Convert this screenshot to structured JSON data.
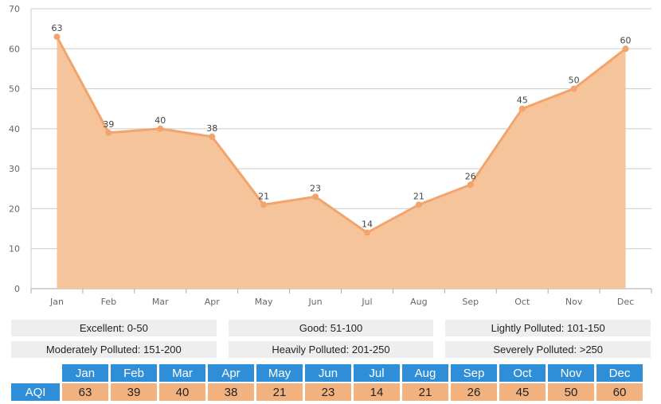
{
  "chart_data": {
    "type": "area",
    "categories": [
      "Jan",
      "Feb",
      "Mar",
      "Apr",
      "May",
      "Jun",
      "Jul",
      "Aug",
      "Sep",
      "Oct",
      "Nov",
      "Dec"
    ],
    "values": [
      63,
      39,
      40,
      38,
      21,
      23,
      14,
      21,
      26,
      45,
      50,
      60
    ],
    "ylim": [
      0,
      70
    ],
    "yticks": [
      0,
      10,
      20,
      30,
      40,
      50,
      60,
      70
    ],
    "grid": true,
    "title": "",
    "xlabel": "",
    "ylabel": ""
  },
  "colors": {
    "area_fill": "#f5c49a",
    "line": "#f2a46b",
    "grid": "#cccccc",
    "table_header": "#2e8fd8",
    "table_value": "#f2b27f"
  },
  "legend": [
    [
      "Excellent: 0-50",
      "Good: 51-100",
      "Lightly Polluted: 101-150"
    ],
    [
      "Moderately Polluted: 151-200",
      "Heavily Polluted: 201-250",
      "Severely Polluted: >250"
    ]
  ],
  "table": {
    "row_label": "AQI",
    "months": [
      "Jan",
      "Feb",
      "Mar",
      "Apr",
      "May",
      "Jun",
      "Jul",
      "Aug",
      "Sep",
      "Oct",
      "Nov",
      "Dec"
    ],
    "values": [
      "63",
      "39",
      "40",
      "38",
      "21",
      "23",
      "14",
      "21",
      "26",
      "45",
      "50",
      "60"
    ]
  }
}
